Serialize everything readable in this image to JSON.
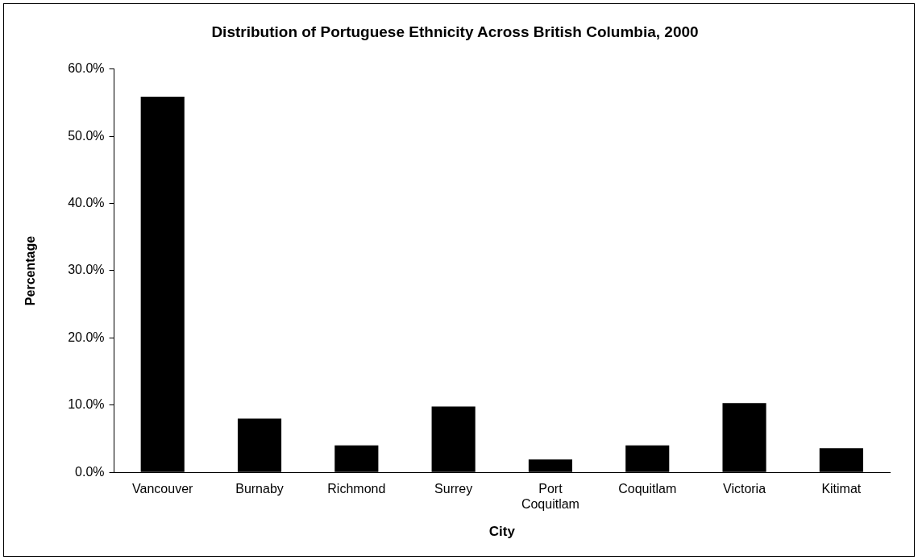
{
  "chart_data": {
    "type": "bar",
    "title": "Distribution of Portuguese Ethnicity Across British Columbia, 2000",
    "xlabel": "City",
    "ylabel": "Percentage",
    "categories": [
      "Vancouver",
      "Burnaby",
      "Richmond",
      "Surrey",
      "Port Coquitlam",
      "Coquitlam",
      "Victoria",
      "Kitimat"
    ],
    "values": [
      55.9,
      8.0,
      4.0,
      9.8,
      1.9,
      4.0,
      10.3,
      3.6
    ],
    "color": "#000000",
    "ylim": [
      0,
      60
    ],
    "yticks": [
      {
        "value": 0,
        "label": "0.0%"
      },
      {
        "value": 10,
        "label": "10.0%"
      },
      {
        "value": 20,
        "label": "20.0%"
      },
      {
        "value": 30,
        "label": "30.0%"
      },
      {
        "value": 40,
        "label": "40.0%"
      },
      {
        "value": 50,
        "label": "50.0%"
      },
      {
        "value": 60,
        "label": "60.0%"
      }
    ],
    "grid": false,
    "legend": false
  }
}
